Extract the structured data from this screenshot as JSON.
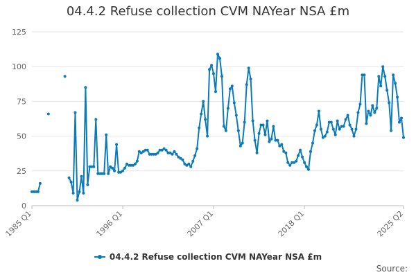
{
  "chart_data": {
    "type": "line",
    "title": "04.4.2 Refuse collection CVM NAYear NSA £m",
    "xlabel": "",
    "ylabel": "",
    "ylim": [
      0,
      125
    ],
    "y_ticks": [
      0,
      25,
      50,
      75,
      100,
      125
    ],
    "x_tick_labels": [
      "1985 Q1",
      "1996 Q1",
      "2007 Q1",
      "2018 Q1",
      "2025 Q2"
    ],
    "grid": true,
    "legend_position": "bottom",
    "color": "#0a7ab8",
    "series": [
      {
        "name": "04.4.2 Refuse collection CVM NAYear NSA £m",
        "values": [
          [
            1985.0,
            10
          ],
          [
            1985.25,
            10
          ],
          [
            1985.5,
            10
          ],
          [
            1985.75,
            10
          ],
          [
            1986.0,
            16
          ],
          [
            1987.0,
            66
          ],
          [
            1989.0,
            93
          ],
          [
            1989.5,
            20
          ],
          [
            1989.75,
            17
          ],
          [
            1990.0,
            9
          ],
          [
            1990.25,
            67
          ],
          [
            1990.5,
            4
          ],
          [
            1990.75,
            10
          ],
          [
            1991.0,
            21
          ],
          [
            1991.25,
            9
          ],
          [
            1991.5,
            85
          ],
          [
            1991.75,
            15
          ],
          [
            1992.0,
            28
          ],
          [
            1992.25,
            28
          ],
          [
            1992.5,
            28
          ],
          [
            1992.75,
            62
          ],
          [
            1993.0,
            23
          ],
          [
            1993.25,
            23
          ],
          [
            1993.5,
            23
          ],
          [
            1993.75,
            23
          ],
          [
            1994.0,
            51
          ],
          [
            1994.25,
            23
          ],
          [
            1994.5,
            28
          ],
          [
            1994.75,
            27
          ],
          [
            1995.0,
            25
          ],
          [
            1995.25,
            44
          ],
          [
            1995.5,
            24
          ],
          [
            1995.75,
            24
          ],
          [
            1996.0,
            25
          ],
          [
            1996.25,
            27
          ],
          [
            1996.5,
            30
          ],
          [
            1996.75,
            29
          ],
          [
            1997.0,
            29
          ],
          [
            1997.25,
            29
          ],
          [
            1997.5,
            30
          ],
          [
            1997.75,
            32
          ],
          [
            1998.0,
            39
          ],
          [
            1998.25,
            38
          ],
          [
            1998.5,
            39
          ],
          [
            1998.75,
            40
          ],
          [
            1999.0,
            40
          ],
          [
            1999.25,
            37
          ],
          [
            1999.5,
            37
          ],
          [
            1999.75,
            37
          ],
          [
            2000.0,
            37
          ],
          [
            2000.25,
            38
          ],
          [
            2000.5,
            40
          ],
          [
            2000.75,
            40
          ],
          [
            2001.0,
            41
          ],
          [
            2001.25,
            40
          ],
          [
            2001.5,
            38
          ],
          [
            2001.75,
            38
          ],
          [
            2002.0,
            37
          ],
          [
            2002.25,
            39
          ],
          [
            2002.5,
            37
          ],
          [
            2002.75,
            35
          ],
          [
            2003.0,
            34
          ],
          [
            2003.25,
            33
          ],
          [
            2003.5,
            30
          ],
          [
            2003.75,
            29
          ],
          [
            2004.0,
            30
          ],
          [
            2004.25,
            28
          ],
          [
            2004.5,
            32
          ],
          [
            2004.75,
            36
          ],
          [
            2005.0,
            41
          ],
          [
            2005.25,
            56
          ],
          [
            2005.5,
            66
          ],
          [
            2005.75,
            75
          ],
          [
            2006.0,
            62
          ],
          [
            2006.25,
            50
          ],
          [
            2006.5,
            98
          ],
          [
            2006.75,
            101
          ],
          [
            2007.0,
            95
          ],
          [
            2007.25,
            82
          ],
          [
            2007.5,
            109
          ],
          [
            2007.75,
            106
          ],
          [
            2008.0,
            93
          ],
          [
            2008.25,
            57
          ],
          [
            2008.5,
            54
          ],
          [
            2008.75,
            70
          ],
          [
            2009.0,
            84
          ],
          [
            2009.25,
            86
          ],
          [
            2009.5,
            74
          ],
          [
            2009.75,
            65
          ],
          [
            2010.0,
            54
          ],
          [
            2010.25,
            43
          ],
          [
            2010.5,
            45
          ],
          [
            2010.75,
            60
          ],
          [
            2011.0,
            87
          ],
          [
            2011.25,
            99
          ],
          [
            2011.5,
            91
          ],
          [
            2011.75,
            61
          ],
          [
            2012.0,
            47
          ],
          [
            2012.25,
            38
          ],
          [
            2012.5,
            52
          ],
          [
            2012.75,
            58
          ],
          [
            2013.0,
            58
          ],
          [
            2013.25,
            51
          ],
          [
            2013.5,
            61
          ],
          [
            2013.75,
            46
          ],
          [
            2014.0,
            48
          ],
          [
            2014.25,
            57
          ],
          [
            2014.5,
            47
          ],
          [
            2014.75,
            47
          ],
          [
            2015.0,
            43
          ],
          [
            2015.25,
            44
          ],
          [
            2015.5,
            39
          ],
          [
            2015.75,
            38
          ],
          [
            2016.0,
            31
          ],
          [
            2016.25,
            29
          ],
          [
            2016.5,
            31
          ],
          [
            2016.75,
            31
          ],
          [
            2017.0,
            32
          ],
          [
            2017.25,
            36
          ],
          [
            2017.5,
            40
          ],
          [
            2017.75,
            35
          ],
          [
            2018.0,
            31
          ],
          [
            2018.25,
            28
          ],
          [
            2018.5,
            26
          ],
          [
            2018.75,
            39
          ],
          [
            2019.0,
            45
          ],
          [
            2019.25,
            54
          ],
          [
            2019.5,
            58
          ],
          [
            2019.75,
            68
          ],
          [
            2020.0,
            55
          ],
          [
            2020.25,
            49
          ],
          [
            2020.5,
            50
          ],
          [
            2020.75,
            53
          ],
          [
            2021.0,
            60
          ],
          [
            2021.25,
            60
          ],
          [
            2021.5,
            55
          ],
          [
            2021.75,
            51
          ],
          [
            2022.0,
            61
          ],
          [
            2022.25,
            55
          ],
          [
            2022.5,
            57
          ],
          [
            2022.75,
            57
          ],
          [
            2023.0,
            62
          ],
          [
            2023.25,
            65
          ],
          [
            2023.5,
            58
          ],
          [
            2023.75,
            55
          ],
          [
            2024.0,
            50
          ],
          [
            2024.25,
            55
          ],
          [
            2024.5,
            67
          ],
          [
            2024.75,
            73
          ],
          [
            2025.0,
            94
          ],
          [
            2025.25,
            94
          ],
          [
            2025.5,
            59
          ],
          [
            2025.75,
            68
          ],
          [
            2026.0,
            65
          ],
          [
            2026.25,
            72
          ],
          [
            2026.5,
            67
          ],
          [
            2026.75,
            70
          ],
          [
            2027.0,
            93
          ],
          [
            2027.25,
            86
          ],
          [
            2027.5,
            100
          ],
          [
            2027.75,
            93
          ],
          [
            2028.0,
            83
          ],
          [
            2028.25,
            74
          ],
          [
            2028.5,
            54
          ],
          [
            2028.75,
            94
          ],
          [
            2029.0,
            88
          ],
          [
            2029.25,
            78
          ],
          [
            2029.5,
            60
          ],
          [
            2029.75,
            63
          ],
          [
            2030.0,
            49
          ]
        ]
      }
    ]
  },
  "legend": {
    "label": "04.4.2 Refuse collection CVM NAYear NSA £m"
  },
  "footer": {
    "source_label": "Source:"
  }
}
